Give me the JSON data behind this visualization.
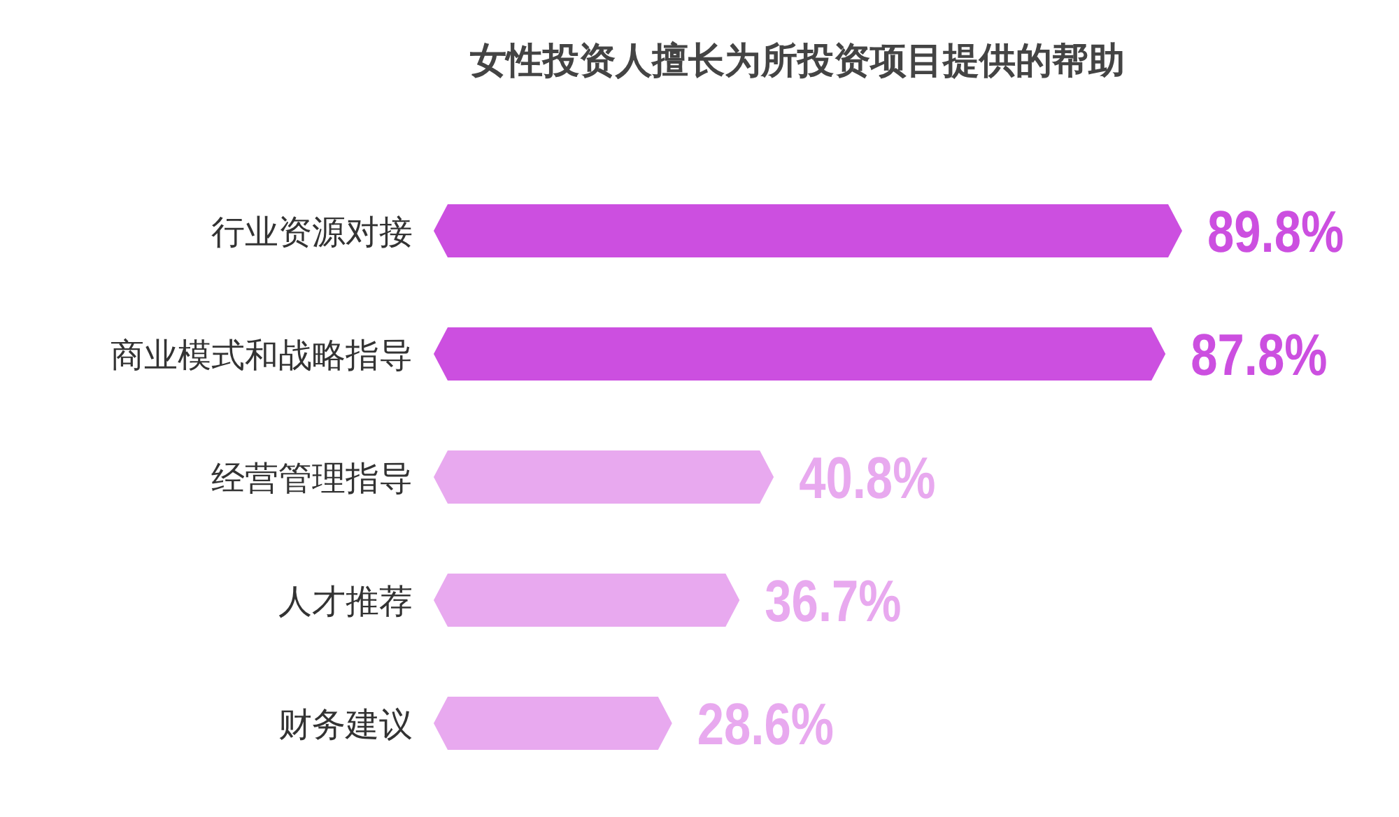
{
  "chart_data": {
    "type": "bar",
    "orientation": "horizontal",
    "title": "女性投资人擅长为所投资项目提供的帮助",
    "categories": [
      "行业资源对接",
      "商业模式和战略指导",
      "经营管理指导",
      "人才推荐",
      "财务建议"
    ],
    "values": [
      89.8,
      87.8,
      40.8,
      36.7,
      28.6
    ],
    "colors": [
      "#cc4fe0",
      "#cc4fe0",
      "#e8a9ef",
      "#e8a9ef",
      "#e8a9ef"
    ],
    "value_labels": [
      "89.8%",
      "87.8%",
      "40.8%",
      "36.7%",
      "28.6%"
    ]
  }
}
